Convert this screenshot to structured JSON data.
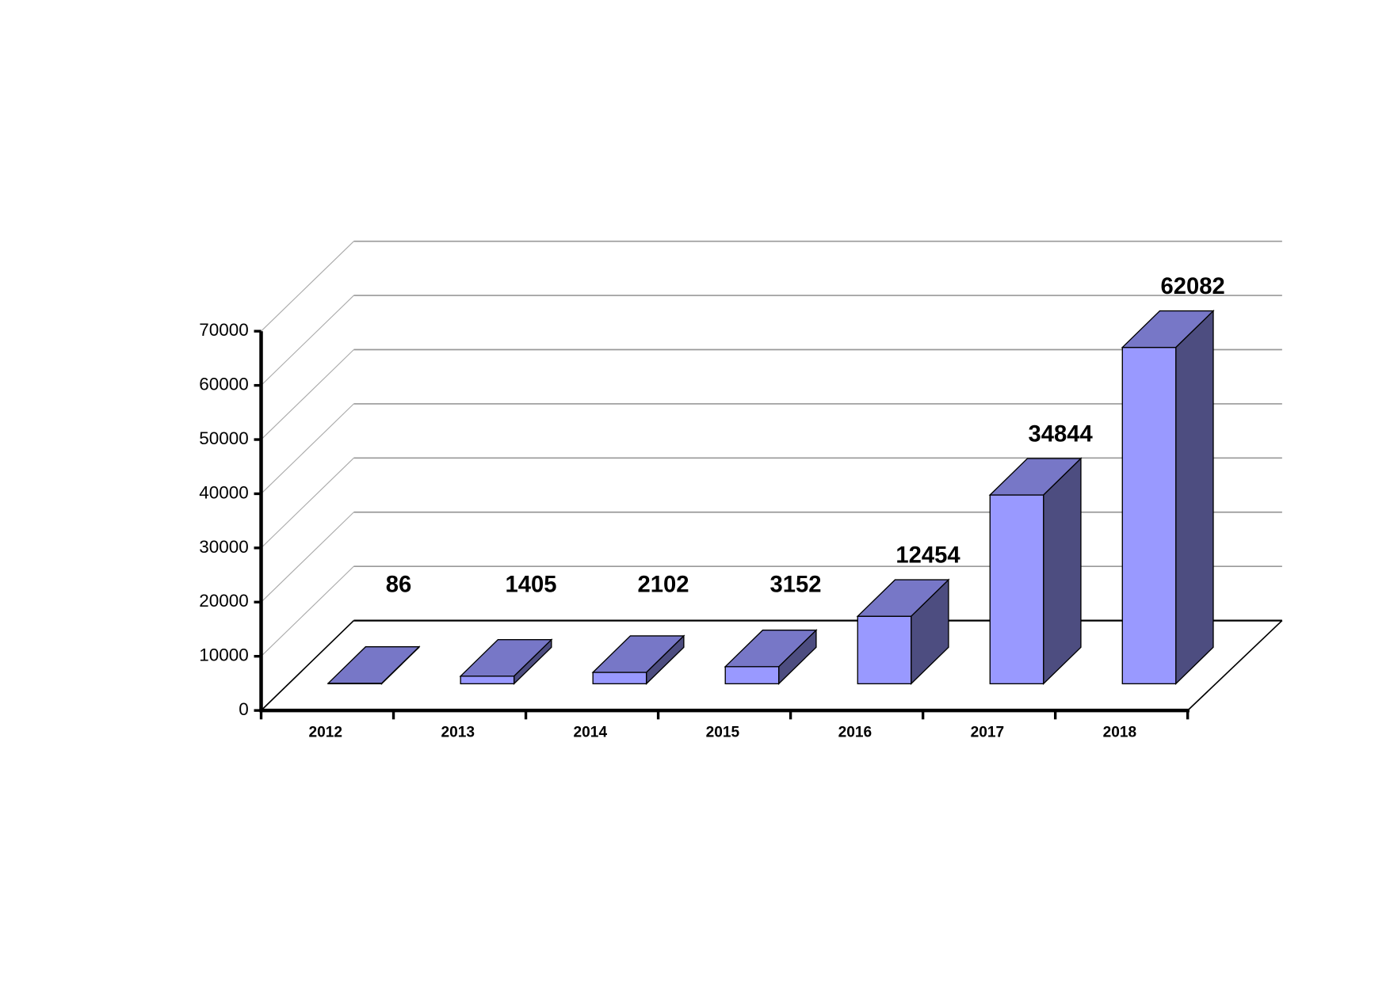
{
  "chart_data": {
    "type": "bar3d",
    "categories": [
      "2012",
      "2013",
      "2014",
      "2015",
      "2016",
      "2017",
      "2018"
    ],
    "values": [
      86,
      1405,
      2102,
      3152,
      12454,
      34844,
      62082
    ],
    "color": "#9999ff",
    "ylim": [
      0,
      70000
    ],
    "yticks": [
      0,
      10000,
      20000,
      30000,
      40000,
      50000,
      60000,
      70000
    ],
    "grid": true
  }
}
